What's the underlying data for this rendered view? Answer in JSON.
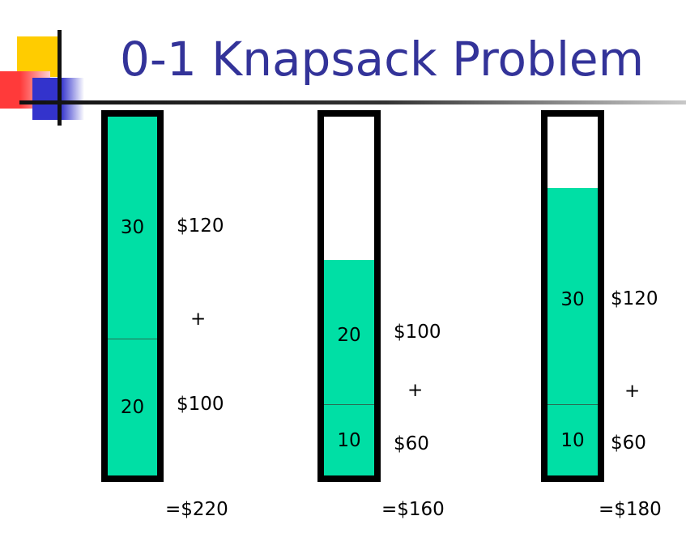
{
  "title": "0-1 Knapsack Problem",
  "colors": {
    "title": "#333399",
    "item": "#00dfa5",
    "border": "#000000"
  },
  "knapsacks": [
    {
      "items": [
        {
          "weight": "30",
          "value": "$120"
        },
        {
          "weight": "20",
          "value": "$100"
        }
      ],
      "operator": "+",
      "total": "=$220"
    },
    {
      "items": [
        {
          "weight": "20",
          "value": "$100"
        },
        {
          "weight": "10",
          "value": "$60"
        }
      ],
      "operator": "+",
      "total": "=$160"
    },
    {
      "items": [
        {
          "weight": "30",
          "value": "$120"
        },
        {
          "weight": "10",
          "value": "$60"
        }
      ],
      "operator": "+",
      "total": "=$180"
    }
  ]
}
